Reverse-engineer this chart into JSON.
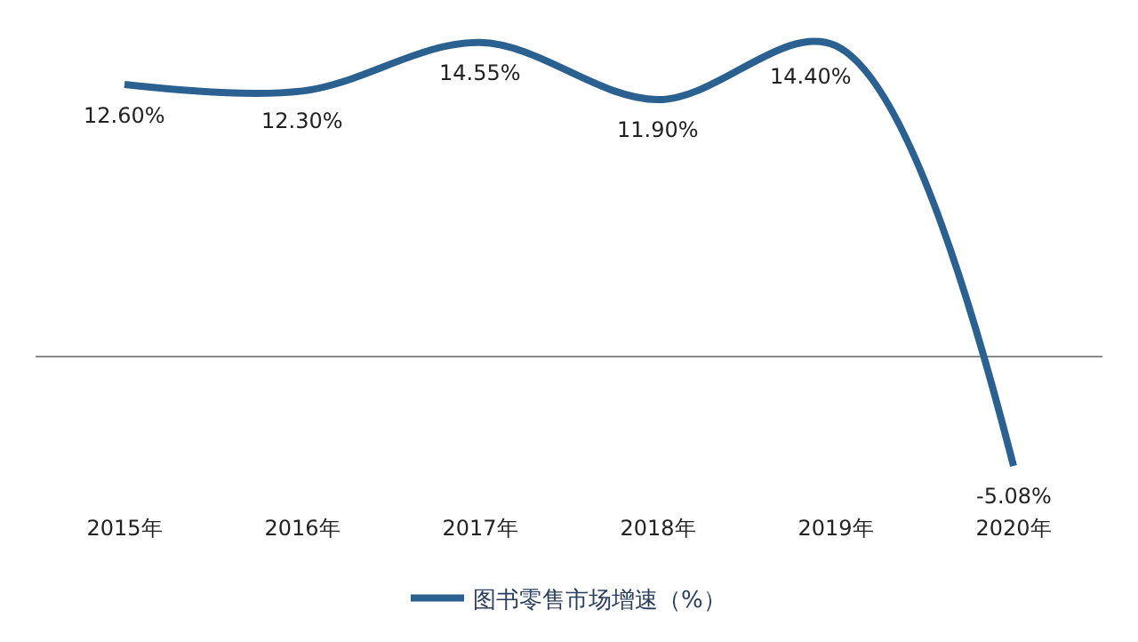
{
  "chart_data": {
    "type": "line",
    "categories": [
      "2015年",
      "2016年",
      "2017年",
      "2018年",
      "2019年",
      "2020年"
    ],
    "series": [
      {
        "name": "图书零售市场增速（%）",
        "color": "#2b6190",
        "values": [
          12.6,
          12.3,
          14.55,
          11.9,
          14.4,
          -5.08
        ],
        "value_labels": [
          "12.60%",
          "12.30%",
          "14.55%",
          "11.90%",
          "14.40%",
          "-5.08%"
        ]
      }
    ],
    "tick_labels": "x",
    "legend": "bottom",
    "marker": "none",
    "line_style": "solid"
  }
}
